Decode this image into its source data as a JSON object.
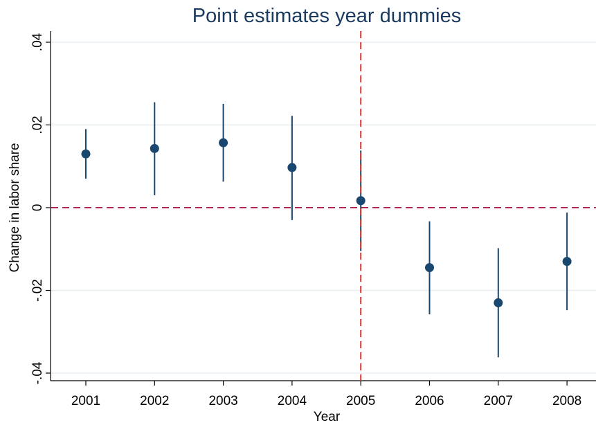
{
  "chart_data": {
    "type": "scatter",
    "title": "Point estimates year dummies",
    "xlabel": "Year",
    "ylabel": "Change in labor share",
    "categories": [
      "2001",
      "2002",
      "2003",
      "2004",
      "2005",
      "2006",
      "2007",
      "2008"
    ],
    "estimates": [
      0.013,
      0.0143,
      0.0157,
      0.0097,
      0.0017,
      -0.0145,
      -0.023,
      -0.013
    ],
    "ci_low": [
      0.007,
      0.003,
      0.0063,
      -0.003,
      -0.0105,
      -0.0258,
      -0.0362,
      -0.0248
    ],
    "ci_high": [
      0.019,
      0.0255,
      0.0251,
      0.0222,
      0.0138,
      -0.0033,
      -0.0098,
      -0.0012
    ],
    "ylim": [
      -0.04,
      0.04
    ],
    "yticks": [
      -0.04,
      -0.02,
      0,
      0.02,
      0.04
    ],
    "ytick_labels": [
      "-.04",
      "-.02",
      "0",
      ".02",
      ".04"
    ],
    "reference_lines": {
      "horizontal_y": 0,
      "vertical_x": "2005"
    },
    "grid": true,
    "colors": {
      "markers": "#1a476f",
      "horizontal_ref": "#b0244f",
      "vertical_ref": "#e8332a",
      "grid": "#e6eef2",
      "title": "#1a3a5f"
    }
  }
}
